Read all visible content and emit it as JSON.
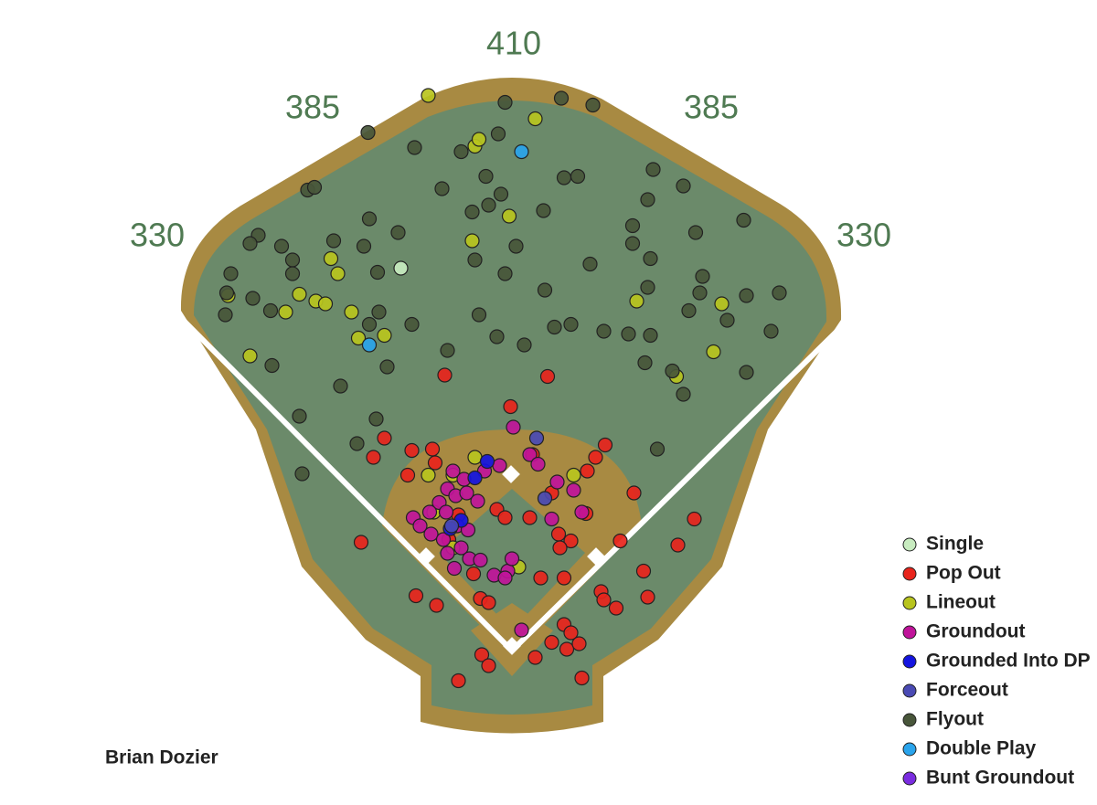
{
  "chart_data": {
    "type": "scatter",
    "title": "Brian Dozier",
    "distance_labels": [
      330,
      385,
      410,
      385,
      330
    ],
    "series": [
      {
        "name": "Single",
        "color": "#c8ecc0",
        "x": [
          -81
        ],
        "y": [
          279
        ]
      },
      {
        "name": "Pop Out",
        "color": "#e8241c",
        "x": [
          -49,
          26,
          -1,
          -93,
          -101,
          -73,
          -58,
          -76,
          -56,
          15,
          61,
          68,
          55,
          29,
          89,
          -11,
          -5,
          13,
          54,
          34,
          43,
          35,
          79,
          121,
          133,
          -110,
          -70,
          -55,
          -23,
          -17,
          -28,
          21,
          38,
          96,
          99,
          65,
          67,
          76,
          38,
          43,
          29,
          40,
          49,
          17,
          -22,
          -17,
          -39,
          51,
          -39,
          -46
        ],
        "y": [
          201,
          200,
          178,
          155,
          141,
          146,
          147,
          128,
          137,
          143,
          141,
          150,
          131,
          115,
          115,
          103,
          97,
          97,
          100,
          85,
          80,
          75,
          80,
          77,
          96,
          79,
          40,
          33,
          38,
          35,
          56,
          53,
          53,
          58,
          39,
          43,
          37,
          31,
          19,
          13,
          6,
          1,
          5,
          -5,
          -3,
          -11,
          -22,
          -20,
          99,
          81
        ]
      },
      {
        "name": "Lineout",
        "color": "#b8c41e",
        "x": [
          -61,
          17,
          -27,
          -24,
          -2,
          -29,
          -132,
          -127,
          -207,
          -165,
          -155,
          -143,
          -136,
          -117,
          -112,
          -93,
          -191,
          91,
          153,
          147,
          120,
          45,
          -27,
          -61,
          -43,
          -57,
          -43,
          5
        ],
        "y": [
          405,
          388,
          368,
          373,
          317,
          299,
          286,
          275,
          259,
          247,
          260,
          255,
          253,
          247,
          228,
          230,
          215,
          255,
          253,
          218,
          200,
          128,
          141,
          128,
          128,
          101,
          75,
          61
        ]
      },
      {
        "name": "Groundout",
        "color": "#c0139a",
        "x": [
          1,
          13,
          19,
          -43,
          -35,
          -20,
          -9,
          -47,
          -41,
          -33,
          -25,
          -53,
          -60,
          -48,
          -72,
          -67,
          -59,
          -50,
          -40,
          -32,
          -47,
          -37,
          -31,
          -42,
          -23,
          -13,
          -3,
          0,
          -5,
          29,
          33,
          45,
          51,
          7
        ],
        "y": [
          163,
          143,
          136,
          131,
          125,
          131,
          135,
          118,
          113,
          115,
          109,
          108,
          101,
          101,
          97,
          91,
          85,
          81,
          91,
          88,
          71,
          75,
          67,
          60,
          66,
          55,
          58,
          67,
          53,
          96,
          123,
          117,
          101,
          15
        ]
      },
      {
        "name": "Grounded Into DP",
        "color": "#1414e0",
        "x": [
          -27,
          -37,
          -45,
          -18
        ],
        "y": [
          126,
          95,
          89,
          138
        ]
      },
      {
        "name": "Forceout",
        "color": "#4a4ab4",
        "x": [
          18,
          24,
          -44
        ],
        "y": [
          155,
          111,
          91
        ]
      },
      {
        "name": "Flyout",
        "color": "#48563a",
        "x": [
          -105,
          -71,
          -37,
          -10,
          -5,
          36,
          59,
          -19,
          -8,
          -51,
          -29,
          -17,
          23,
          38,
          48,
          103,
          125,
          99,
          169,
          88,
          134,
          88,
          101,
          57,
          -27,
          -5,
          3,
          -83,
          -104,
          -108,
          -98,
          -130,
          -149,
          -144,
          -185,
          -191,
          -168,
          -160,
          -205,
          -208,
          -209,
          -189,
          -176,
          -160,
          -104,
          -97,
          -73,
          -24,
          -11,
          9,
          24,
          43,
          31,
          67,
          85,
          101,
          99,
          139,
          137,
          129,
          157,
          171,
          195,
          189,
          171,
          125,
          117,
          97,
          106,
          -47,
          -91,
          -175,
          -125,
          -155,
          -99,
          -113,
          -153
        ],
        "y": [
          378,
          367,
          364,
          377,
          400,
          403,
          398,
          346,
          333,
          337,
          320,
          325,
          321,
          345,
          346,
          351,
          339,
          329,
          314,
          310,
          305,
          297,
          286,
          282,
          285,
          275,
          295,
          305,
          315,
          295,
          276,
          299,
          336,
          338,
          303,
          297,
          295,
          285,
          275,
          261,
          245,
          257,
          248,
          275,
          238,
          247,
          238,
          245,
          229,
          223,
          263,
          238,
          236,
          233,
          231,
          230,
          265,
          273,
          261,
          248,
          241,
          259,
          261,
          233,
          203,
          187,
          204,
          210,
          147,
          219,
          207,
          208,
          193,
          171,
          169,
          151,
          129
        ]
      },
      {
        "name": "Double Play",
        "color": "#2aa4ec",
        "x": [
          7,
          -104
        ],
        "y": [
          364,
          223
        ]
      },
      {
        "name": "Bunt Groundout",
        "color": "#7a2ce0",
        "x": [],
        "y": []
      }
    ]
  }
}
